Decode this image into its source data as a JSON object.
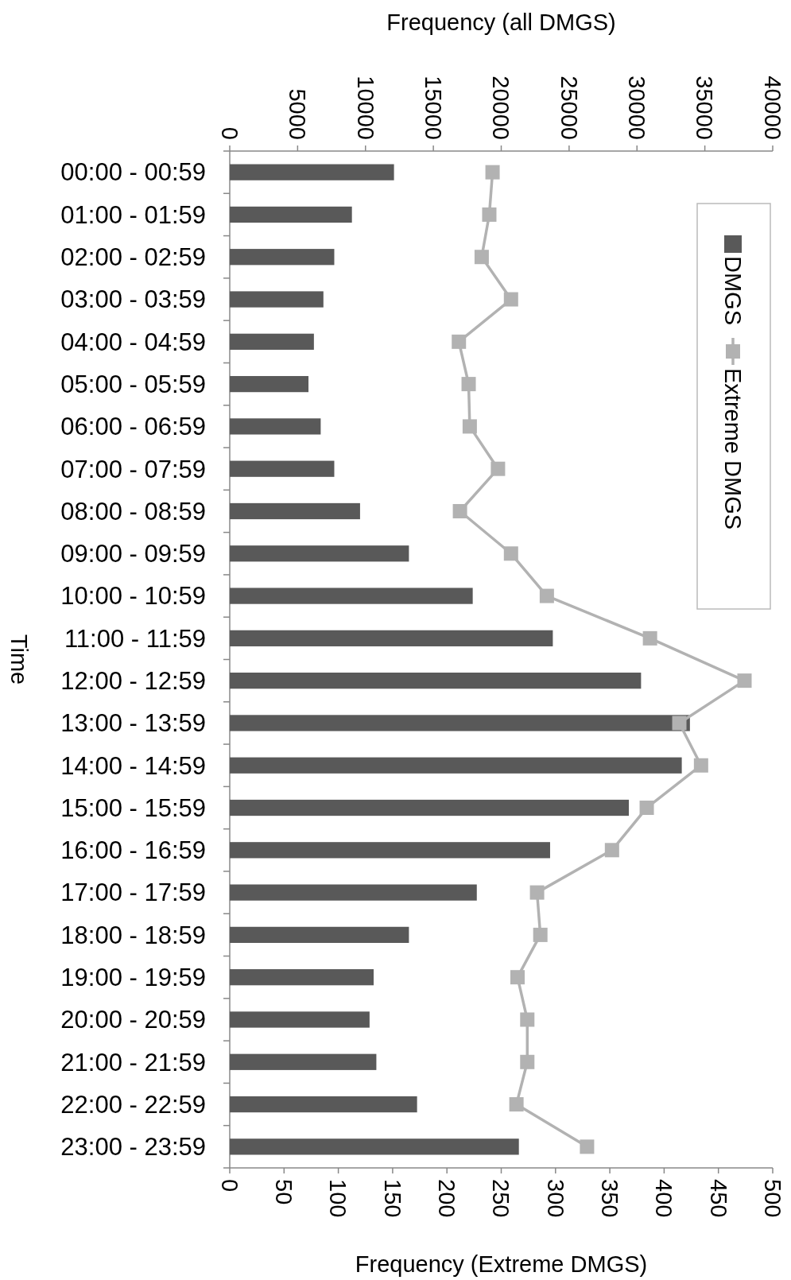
{
  "chart_data": {
    "type": "bar",
    "orientation": "horizontal",
    "ylabel": "Time",
    "xlabel": "Frequency (Extreme DMGS)",
    "x2label": "Frequency (all DMGS)",
    "categories": [
      "00:00 - 00:59",
      "01:00 - 01:59",
      "02:00 - 02:59",
      "03:00 - 03:59",
      "04:00 - 04:59",
      "05:00 - 05:59",
      "06:00 - 06:59",
      "07:00 - 07:59",
      "08:00 - 08:59",
      "09:00 - 09:59",
      "10:00 - 10:59",
      "11:00 - 11:59",
      "12:00 - 12:59",
      "13:00 - 13:59",
      "14:00 - 14:59",
      "15:00 - 15:59",
      "16:00 - 16:59",
      "17:00 - 17:59",
      "18:00 - 18:59",
      "19:00 - 19:59",
      "20:00 - 20:59",
      "21:00 - 21:59",
      "22:00 - 22:59",
      "23:00 - 23:59"
    ],
    "series": [
      {
        "name": "DMGS",
        "axis": "x2",
        "color": "#595959",
        "values": [
          12100,
          9000,
          7700,
          6900,
          6200,
          5800,
          6700,
          7700,
          9600,
          13200,
          17900,
          23800,
          30300,
          33900,
          33300,
          29400,
          23600,
          18200,
          13200,
          10600,
          10300,
          10800,
          13800,
          21300
        ]
      },
      {
        "name": "Extreme DMGS",
        "type": "line",
        "marker": "square",
        "color": "#b2b2b2",
        "values": [
          242,
          239,
          232,
          259,
          211,
          220,
          221,
          247,
          212,
          259,
          292,
          387,
          474,
          414,
          434,
          384,
          352,
          283,
          286,
          265,
          274,
          274,
          264,
          329
        ]
      }
    ],
    "xlim": [
      0,
      500
    ],
    "xticks": [
      0,
      50,
      100,
      150,
      200,
      250,
      300,
      350,
      400,
      450,
      500
    ],
    "x2lim": [
      0,
      40000
    ],
    "x2ticks": [
      0,
      5000,
      10000,
      15000,
      20000,
      25000,
      30000,
      35000,
      40000
    ],
    "legend": "right",
    "grid": false
  }
}
